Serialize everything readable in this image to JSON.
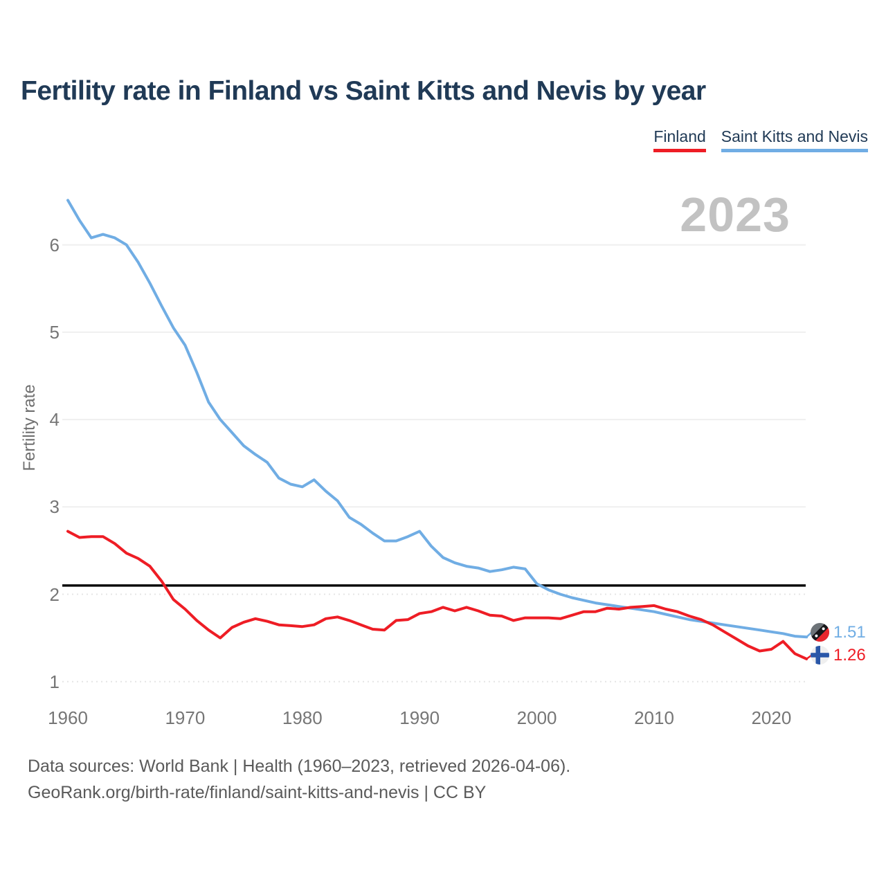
{
  "title": "Fertility rate in Finland vs Saint Kitts and Nevis by year",
  "legend": {
    "finland": {
      "label": "Finland",
      "color": "#ee1d25"
    },
    "saint_kitts": {
      "label": "Saint Kitts and Nevis",
      "color": "#70ade4"
    }
  },
  "watermark": "2023",
  "axes": {
    "y_label": "Fertility rate",
    "y_ticks": [
      "1",
      "2",
      "3",
      "4",
      "5",
      "6"
    ],
    "x_ticks": [
      "1960",
      "1970",
      "1980",
      "1990",
      "2000",
      "2010",
      "2020"
    ]
  },
  "end_labels": {
    "saint_kitts": {
      "value": "1.51",
      "color": "#70ade4",
      "flag": "saint-kitts-and-nevis-flag"
    },
    "finland": {
      "value": "1.26",
      "color": "#ee1d25",
      "flag": "finland-flag"
    }
  },
  "footer": {
    "line1": "Data sources: World Bank | Health (1960–2023, retrieved 2026-04-06).",
    "line2": "GeoRank.org/birth-rate/finland/saint-kitts-and-nevis | CC BY"
  },
  "chart_data": {
    "type": "line",
    "title": "Fertility rate in Finland vs Saint Kitts and Nevis by year",
    "ylabel": "Fertility rate",
    "xlim": [
      1960,
      2023
    ],
    "ylim": [
      1,
      6.7
    ],
    "x_ticks": [
      1960,
      1970,
      1980,
      1990,
      2000,
      2010,
      2020
    ],
    "y_ticks": [
      1,
      2,
      3,
      4,
      5,
      6
    ],
    "reference_line": 2.1,
    "grid": "horizontal",
    "legend_position": "top-right",
    "x": [
      1960,
      1961,
      1962,
      1963,
      1964,
      1965,
      1966,
      1967,
      1968,
      1969,
      1970,
      1971,
      1972,
      1973,
      1974,
      1975,
      1976,
      1977,
      1978,
      1979,
      1980,
      1981,
      1982,
      1983,
      1984,
      1985,
      1986,
      1987,
      1988,
      1989,
      1990,
      1991,
      1992,
      1993,
      1994,
      1995,
      1996,
      1997,
      1998,
      1999,
      2000,
      2001,
      2002,
      2003,
      2004,
      2005,
      2006,
      2007,
      2008,
      2009,
      2010,
      2011,
      2012,
      2013,
      2014,
      2015,
      2016,
      2017,
      2018,
      2019,
      2020,
      2021,
      2022,
      2023
    ],
    "series": [
      {
        "name": "Finland",
        "color": "#ee1d25",
        "end_label": "1.26",
        "values": [
          2.72,
          2.65,
          2.66,
          2.66,
          2.58,
          2.47,
          2.41,
          2.32,
          2.15,
          1.94,
          1.83,
          1.7,
          1.59,
          1.5,
          1.62,
          1.68,
          1.72,
          1.69,
          1.65,
          1.64,
          1.63,
          1.65,
          1.72,
          1.74,
          1.7,
          1.65,
          1.6,
          1.59,
          1.7,
          1.71,
          1.78,
          1.8,
          1.85,
          1.81,
          1.85,
          1.81,
          1.76,
          1.75,
          1.7,
          1.73,
          1.73,
          1.73,
          1.72,
          1.76,
          1.8,
          1.8,
          1.84,
          1.83,
          1.85,
          1.86,
          1.87,
          1.83,
          1.8,
          1.75,
          1.71,
          1.65,
          1.57,
          1.49,
          1.41,
          1.35,
          1.37,
          1.46,
          1.32,
          1.26
        ]
      },
      {
        "name": "Saint Kitts and Nevis",
        "color": "#70ade4",
        "end_label": "1.51",
        "values": [
          6.51,
          6.28,
          6.08,
          6.12,
          6.08,
          6.0,
          5.8,
          5.56,
          5.3,
          5.05,
          4.85,
          4.54,
          4.2,
          4.0,
          3.85,
          3.7,
          3.6,
          3.51,
          3.33,
          3.26,
          3.23,
          3.31,
          3.18,
          3.07,
          2.88,
          2.8,
          2.7,
          2.61,
          2.61,
          2.66,
          2.72,
          2.55,
          2.42,
          2.36,
          2.32,
          2.3,
          2.26,
          2.28,
          2.31,
          2.29,
          2.12,
          2.05,
          2.0,
          1.96,
          1.93,
          1.9,
          1.88,
          1.86,
          1.84,
          1.82,
          1.8,
          1.77,
          1.74,
          1.71,
          1.69,
          1.67,
          1.65,
          1.63,
          1.61,
          1.59,
          1.57,
          1.55,
          1.52,
          1.51
        ]
      }
    ]
  }
}
